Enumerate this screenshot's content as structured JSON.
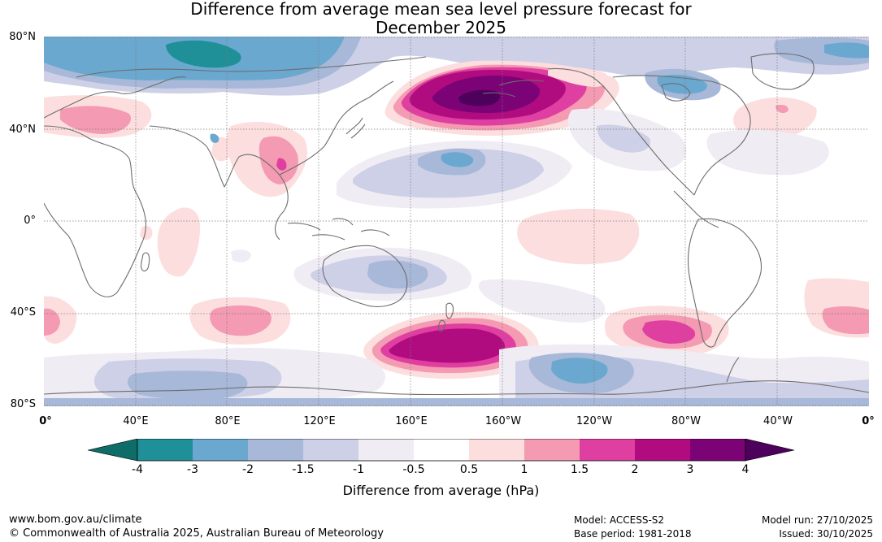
{
  "title": {
    "line1": "Difference from average mean sea level pressure forecast for",
    "line2": "December 2025"
  },
  "map": {
    "lat_labels": [
      "80°N",
      "40°N",
      "0°",
      "40°S",
      "80°S"
    ],
    "lon_labels": [
      "0°",
      "40°E",
      "80°E",
      "120°E",
      "160°E",
      "160°W",
      "120°W",
      "80°W",
      "40°W",
      "0°"
    ]
  },
  "legend": {
    "colors": [
      "#0e6d68",
      "#1f9097",
      "#6aa8cf",
      "#a7b8d8",
      "#cdd0e6",
      "#f0ecf4",
      "#ffffff",
      "#fcdede",
      "#f49ab2",
      "#df3fa0",
      "#b00c80",
      "#7c0376",
      "#4d005c"
    ],
    "tick_labels": [
      "-4",
      "-3",
      "-2",
      "-1.5",
      "-1",
      "-0.5",
      "0.5",
      "1",
      "1.5",
      "2",
      "3",
      "4"
    ],
    "title": "Difference from average (hPa)"
  },
  "footer": {
    "website": "www.bom.gov.au/climate",
    "copyright": "© Commonwealth of Australia 2025, Australian Bureau of Meteorology",
    "model": "Model: ACCESS-S2",
    "base_period": "Base period: 1981-2018",
    "model_run": "Model run: 27/10/2025",
    "issued": "Issued: 30/10/2025"
  }
}
